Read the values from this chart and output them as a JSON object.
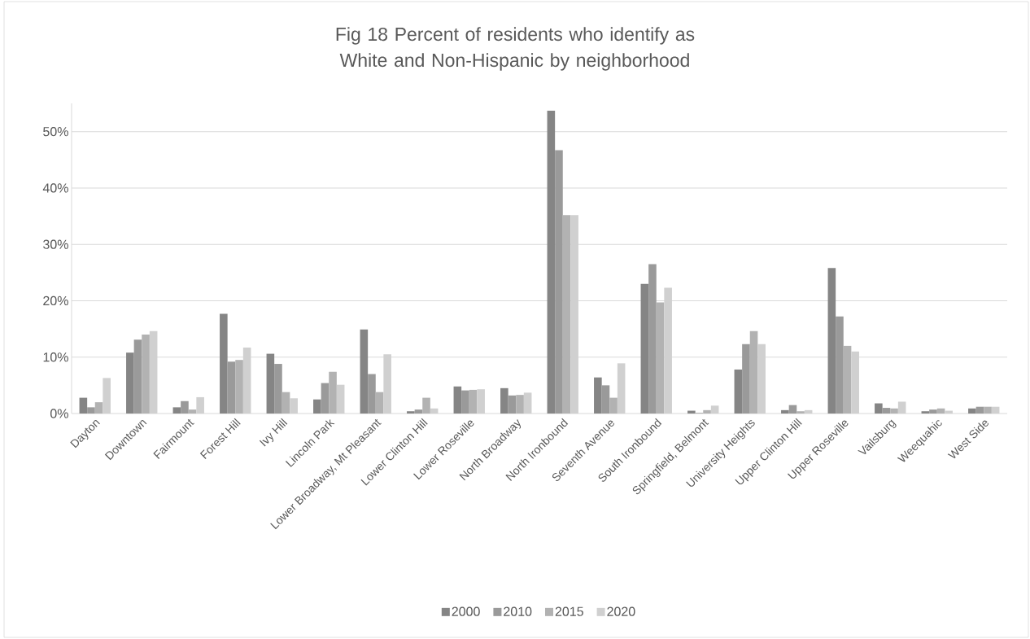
{
  "chart_data": {
    "type": "bar",
    "title": "Fig 18 Percent of residents who identify as White and Non-Hispanic by neighborhood",
    "categories": [
      "Dayton",
      "Downtown",
      "Fairmount",
      "Forest Hill",
      "Ivy Hill",
      "Lincoln Park",
      "Lower Broadway, Mt Pleasant",
      "Lower Clinton Hill",
      "Lower Roseville",
      "North Broadway",
      "North Ironbound",
      "Seventh Avenue",
      "South Ironbound",
      "Springfield, Belmont",
      "University Heights",
      "Upper Clinton Hill",
      "Upper Roseville",
      "Vailsburg",
      "Weequahic",
      "West Side"
    ],
    "series": [
      {
        "name": "2000",
        "color": "#858585",
        "values": [
          2.8,
          10.8,
          1.1,
          17.7,
          10.6,
          2.5,
          14.9,
          0.4,
          4.8,
          4.5,
          53.7,
          6.4,
          23.0,
          0.5,
          7.8,
          0.6,
          25.8,
          1.8,
          0.4,
          0.9
        ]
      },
      {
        "name": "2010",
        "color": "#9a9a9a",
        "values": [
          1.1,
          13.1,
          2.2,
          9.2,
          8.8,
          5.4,
          7.0,
          0.7,
          4.1,
          3.2,
          46.7,
          5.0,
          26.5,
          0.1,
          12.3,
          1.5,
          17.2,
          1.0,
          0.7,
          1.2
        ]
      },
      {
        "name": "2015",
        "color": "#b2b2b2",
        "values": [
          2.0,
          14.0,
          0.7,
          9.5,
          3.8,
          7.4,
          3.8,
          2.8,
          4.2,
          3.3,
          35.2,
          2.8,
          19.7,
          0.6,
          14.6,
          0.4,
          12.0,
          0.9,
          0.9,
          1.2
        ]
      },
      {
        "name": "2020",
        "color": "#d0d0d0",
        "values": [
          6.3,
          14.6,
          2.9,
          11.7,
          2.7,
          5.1,
          10.5,
          0.9,
          4.3,
          3.7,
          35.2,
          8.9,
          22.3,
          1.4,
          12.3,
          0.6,
          11.0,
          2.1,
          0.5,
          1.2
        ]
      }
    ],
    "ylim": [
      0,
      55
    ],
    "yticks": [
      {
        "value": 0,
        "label": "0%"
      },
      {
        "value": 10,
        "label": "10%"
      },
      {
        "value": 20,
        "label": "20%"
      },
      {
        "value": 30,
        "label": "30%"
      },
      {
        "value": 40,
        "label": "40%"
      },
      {
        "value": 50,
        "label": "50%"
      }
    ],
    "grid": "y",
    "legend": "bottom"
  }
}
